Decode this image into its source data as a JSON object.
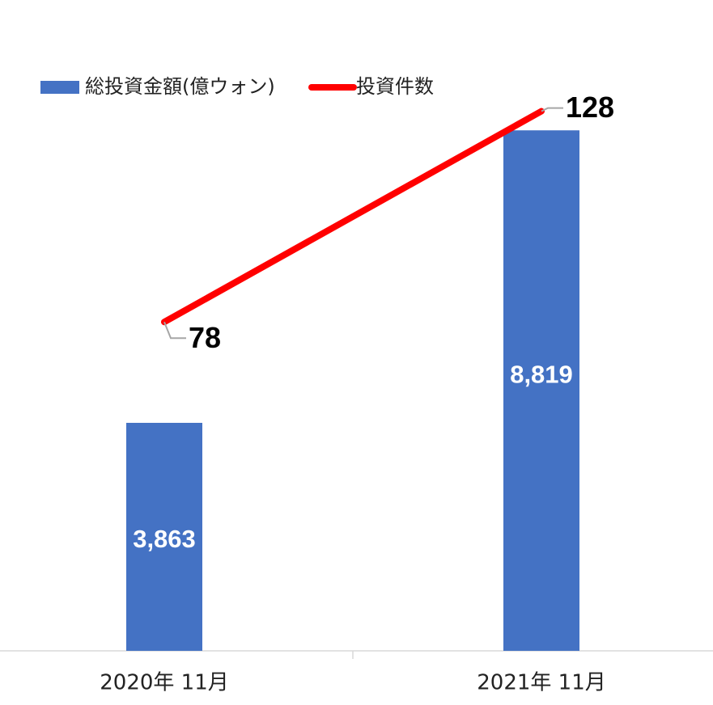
{
  "chart_data": {
    "type": "bar-line",
    "categories": [
      "2020年 11月",
      "2021年 11月"
    ],
    "series": [
      {
        "name": "総投資金額(億ウォン)",
        "type": "bar",
        "color": "#4472c4",
        "values": [
          3863,
          8819
        ],
        "value_labels": [
          "3,863",
          "8,819"
        ]
      },
      {
        "name": "投資件数",
        "type": "line",
        "axis": "y2",
        "color": "#ff0000",
        "values": [
          78,
          128
        ]
      }
    ],
    "ylim": [
      0,
      10000
    ],
    "y2lim": [
      0,
      140
    ],
    "legend": "top"
  }
}
